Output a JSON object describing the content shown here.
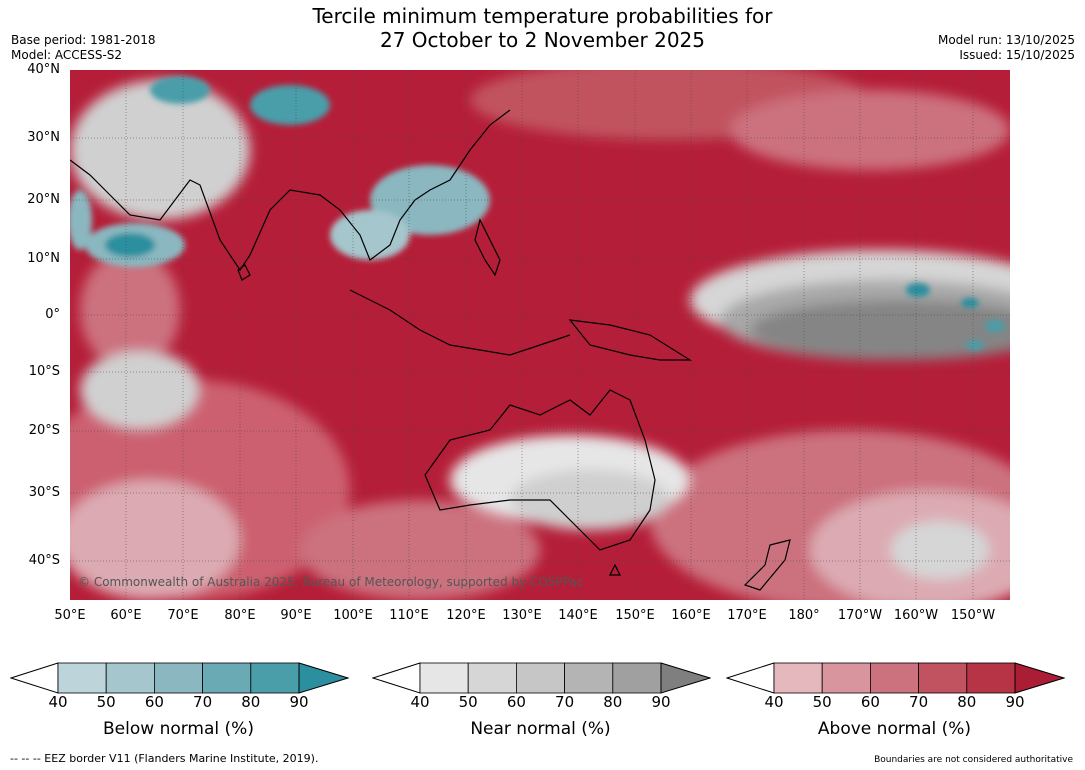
{
  "title_line1": "Tercile minimum temperature probabilities for",
  "title_line2": "27 October to 2 November 2025",
  "base_period": "Base period: 1981-2018",
  "model": "Model: ACCESS-S2",
  "model_run": "Model run: 13/10/2025",
  "issued": "Issued: 15/10/2025",
  "copyright": "© Commonwealth of Australia 2025, Bureau of Meteorology, supported by COSPPac",
  "lat_labels": [
    "40°N",
    "30°N",
    "20°N",
    "10°N",
    "0°",
    "10°S",
    "20°S",
    "30°S",
    "40°S"
  ],
  "lon_labels": [
    "50°E",
    "60°E",
    "70°E",
    "80°E",
    "90°E",
    "100°E",
    "110°E",
    "120°E",
    "130°E",
    "140°E",
    "150°E",
    "160°E",
    "170°E",
    "180°",
    "170°W",
    "160°W",
    "150°W"
  ],
  "colorbars": [
    {
      "title": "Below normal (%)",
      "ticks": [
        "40",
        "50",
        "60",
        "70",
        "80",
        "90"
      ],
      "colors": [
        "#ffffff",
        "#bcd4da",
        "#a4c6cc",
        "#8ab7c0",
        "#6aaab4",
        "#4a9eaa",
        "#2b8f9f"
      ]
    },
    {
      "title": "Near normal (%)",
      "ticks": [
        "40",
        "50",
        "60",
        "70",
        "80",
        "90"
      ],
      "colors": [
        "#ffffff",
        "#e6e6e6",
        "#d6d6d6",
        "#c6c6c6",
        "#b4b4b4",
        "#a0a0a0",
        "#7f7f7f"
      ]
    },
    {
      "title": "Above normal (%)",
      "ticks": [
        "40",
        "50",
        "60",
        "70",
        "80",
        "90"
      ],
      "colors": [
        "#ffffff",
        "#e5b8be",
        "#d9959e",
        "#cc717e",
        "#c1525f",
        "#b73447",
        "#ab1c35"
      ]
    }
  ],
  "footer_left": "--  --  -- EEZ border V11 (Flanders Marine Institute, 2019).",
  "footer_right": "Boundaries are not considered authoritative",
  "colors": {
    "above": "#b51e38",
    "below": "#4a9eaa",
    "near": "#8a8a8a"
  }
}
